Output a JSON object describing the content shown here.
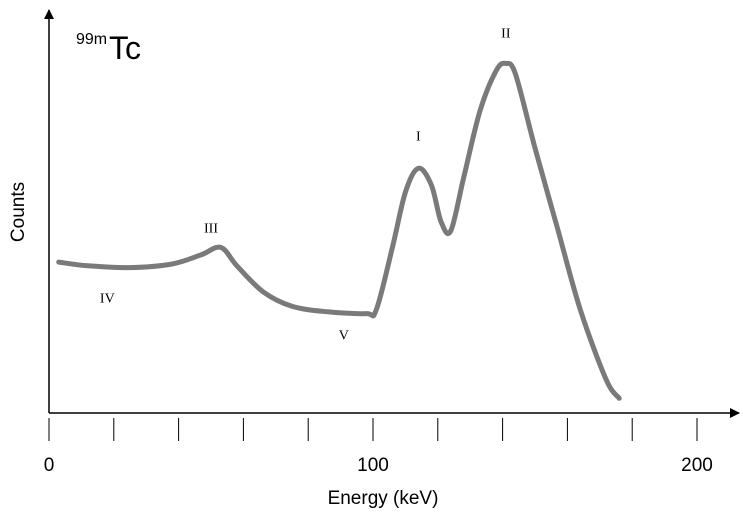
{
  "chart_data": {
    "type": "line",
    "title": "",
    "isotope_label": {
      "superscript": "99m",
      "symbol": "Tc"
    },
    "xlabel": "Energy (keV)",
    "ylabel": "Counts",
    "xlim": [
      0,
      200
    ],
    "x_tick_labels": [
      {
        "value": 0,
        "label": "0"
      },
      {
        "value": 100,
        "label": "100"
      },
      {
        "value": 200,
        "label": "200"
      }
    ],
    "x_minor_ticks": [
      0,
      20,
      40,
      60,
      80,
      100,
      120,
      140,
      160,
      180,
      200
    ],
    "y_ticks_shown": false,
    "ylim": [
      0,
      100
    ],
    "grid": false,
    "series": [
      {
        "color": "#7a7a7a",
        "points": [
          {
            "x": 3,
            "y": 41
          },
          {
            "x": 12,
            "y": 40
          },
          {
            "x": 25,
            "y": 39.5
          },
          {
            "x": 38,
            "y": 40.5
          },
          {
            "x": 47,
            "y": 43
          },
          {
            "x": 53,
            "y": 45
          },
          {
            "x": 58,
            "y": 40
          },
          {
            "x": 66,
            "y": 33
          },
          {
            "x": 75,
            "y": 29
          },
          {
            "x": 86,
            "y": 27.5
          },
          {
            "x": 98,
            "y": 27
          },
          {
            "x": 101,
            "y": 28
          },
          {
            "x": 106,
            "y": 45
          },
          {
            "x": 110,
            "y": 60
          },
          {
            "x": 114,
            "y": 66.5
          },
          {
            "x": 118,
            "y": 62
          },
          {
            "x": 121,
            "y": 52
          },
          {
            "x": 124,
            "y": 49.5
          },
          {
            "x": 128,
            "y": 64
          },
          {
            "x": 133,
            "y": 82
          },
          {
            "x": 138,
            "y": 93
          },
          {
            "x": 141,
            "y": 95
          },
          {
            "x": 144,
            "y": 92
          },
          {
            "x": 150,
            "y": 72
          },
          {
            "x": 157,
            "y": 50
          },
          {
            "x": 164,
            "y": 28
          },
          {
            "x": 172,
            "y": 9
          },
          {
            "x": 176,
            "y": 4
          }
        ]
      }
    ],
    "annotations": [
      {
        "text": "I",
        "x": 114,
        "y": 74
      },
      {
        "text": "II",
        "x": 141,
        "y": 102
      },
      {
        "text": "III",
        "x": 50,
        "y": 49
      },
      {
        "text": "IV",
        "x": 18,
        "y": 30
      },
      {
        "text": "V",
        "x": 91,
        "y": 20
      }
    ]
  }
}
